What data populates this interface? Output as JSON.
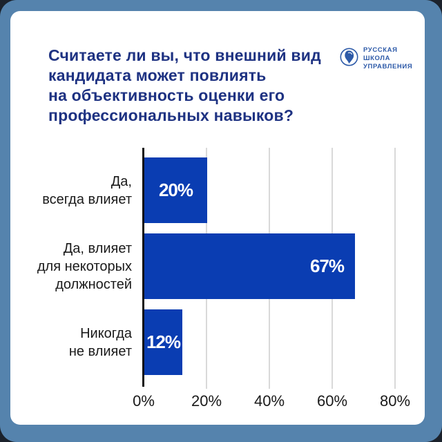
{
  "header": {
    "title": "Считаете ли вы, что внешний вид\nкандидата может повлиять\nна объективность оценки его\nпрофессиональных навыков?"
  },
  "logo": {
    "text": "РУССКАЯ\nШКОЛА\nУПРАВЛЕНИЯ",
    "icon": "school-emblem-face-in-circle"
  },
  "chart_data": {
    "type": "bar",
    "orientation": "horizontal",
    "title": "Считаете ли вы, что внешний вид кандидата может повлиять на объективность оценки его профессиональных навыков?",
    "categories": [
      "Да,\nвсегда влияет",
      "Да, влияет\nдля некоторых\nдолжностей",
      "Никогда\nне влияет"
    ],
    "values": [
      20,
      67,
      12
    ],
    "value_labels": [
      "20%",
      "67%",
      "12%"
    ],
    "value_label_position": [
      "center",
      "right",
      "center"
    ],
    "x_tick_values": [
      0,
      20,
      40,
      60,
      80
    ],
    "x_tick_labels": [
      "0%",
      "20%",
      "40%",
      "60%",
      "80%"
    ],
    "xlim": [
      0,
      80
    ],
    "grid": true,
    "legend": false
  },
  "colors": {
    "background": "#1B222C",
    "frame": "#5583AD",
    "card": "#FFFFFF",
    "title": "#1E3282",
    "logo": "#2D5AA8",
    "bar": "#0A3DB2",
    "bar_label": "#FFFFFF",
    "axis": "#111111",
    "gridline": "#D9D9D9",
    "tick_text": "#1A1A1A",
    "category_text": "#1A1A1A"
  }
}
